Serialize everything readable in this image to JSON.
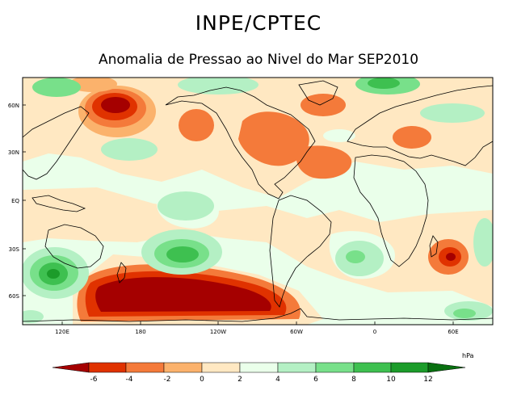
{
  "header": {
    "title": "INPE/CPTEC",
    "subtitle": "Anomalia de Pressao ao Nivel do Mar SEP2010"
  },
  "map": {
    "lat_labels": [
      "60N",
      "30N",
      "EQ",
      "30S",
      "60S"
    ],
    "lon_labels": [
      "120E",
      "180",
      "120W",
      "60W",
      "0",
      "60E"
    ]
  },
  "colorbar": {
    "unit": "hPa",
    "tick_labels": [
      "-6",
      "-4",
      "-2",
      "0",
      "2",
      "4",
      "6",
      "8",
      "10",
      "12"
    ],
    "colors": [
      "#a50000",
      "#e03200",
      "#f47a3a",
      "#fbb26c",
      "#ffe8c2",
      "#eaffea",
      "#b4f0c4",
      "#78e08a",
      "#3ec050",
      "#1c9c2a",
      "#087010"
    ]
  }
}
